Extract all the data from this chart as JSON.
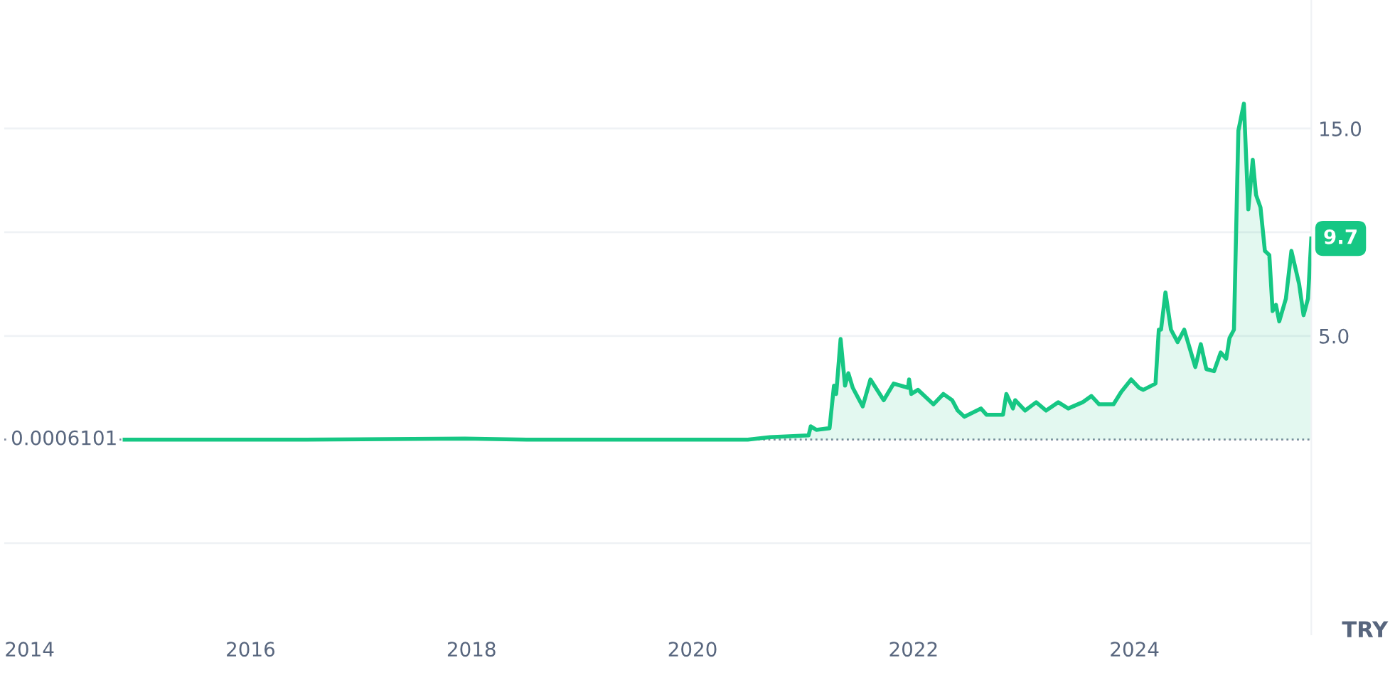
{
  "chart_data": {
    "type": "area",
    "x": [
      2014.86,
      2016.5,
      2017.94,
      2018.5,
      2020.5,
      2020.7,
      2021.05,
      2021.07,
      2021.12,
      2021.24,
      2021.28,
      2021.3,
      2021.34,
      2021.38,
      2021.41,
      2021.45,
      2021.54,
      2021.61,
      2021.73,
      2021.82,
      2021.95,
      2021.96,
      2021.98,
      2022.04,
      2022.18,
      2022.27,
      2022.35,
      2022.4,
      2022.46,
      2022.61,
      2022.66,
      2022.81,
      2022.84,
      2022.9,
      2022.92,
      2023.01,
      2023.11,
      2023.2,
      2023.31,
      2023.4,
      2023.53,
      2023.61,
      2023.68,
      2023.81,
      2023.88,
      2023.97,
      2024.04,
      2024.08,
      2024.19,
      2024.22,
      2024.24,
      2024.28,
      2024.33,
      2024.39,
      2024.45,
      2024.55,
      2024.6,
      2024.65,
      2024.72,
      2024.78,
      2024.83,
      2024.86,
      2024.9,
      2024.94,
      2024.99,
      2025.03,
      2025.07,
      2025.1,
      2025.14,
      2025.18,
      2025.22,
      2025.25,
      2025.28,
      2025.31,
      2025.37,
      2025.42,
      2025.49,
      2025.53,
      2025.57,
      2025.6
    ],
    "series": [
      {
        "color": "#16c784",
        "values": [
          0,
          0,
          0.05,
          0,
          0,
          0.12,
          0.2,
          0.64,
          0.47,
          0.55,
          2.6,
          2.2,
          4.85,
          2.6,
          3.2,
          2.5,
          1.6,
          2.9,
          1.9,
          2.7,
          2.5,
          2.9,
          2.2,
          2.4,
          1.7,
          2.2,
          1.9,
          1.4,
          1.1,
          1.5,
          1.2,
          1.2,
          2.2,
          1.5,
          1.9,
          1.4,
          1.8,
          1.4,
          1.8,
          1.5,
          1.8,
          2.1,
          1.7,
          1.7,
          2.3,
          2.9,
          2.5,
          2.4,
          2.7,
          5.3,
          5.3,
          7.1,
          5.3,
          4.7,
          5.3,
          3.5,
          4.6,
          3.4,
          3.3,
          4.2,
          3.9,
          4.9,
          5.3,
          14.9,
          16.2,
          11.1,
          13.5,
          11.8,
          11.2,
          9.1,
          8.9,
          6.2,
          6.5,
          5.7,
          6.8,
          9.1,
          7.5,
          6.0,
          6.8,
          9.7
        ]
      }
    ],
    "xlim": [
      2013.77,
      2025.6
    ],
    "xticks": [
      2014,
      2016,
      2018,
      2020,
      2022,
      2024
    ],
    "ylim": [
      -9.4,
      21.2
    ],
    "yticks": [
      {
        "value": -5,
        "label": null
      },
      {
        "value": 5,
        "label": "5.0"
      },
      {
        "value": 10,
        "label": null
      },
      {
        "value": 15,
        "label": "15.0"
      }
    ],
    "grid": "y",
    "ref_lines": [
      {
        "axis": "y",
        "value": 0.0006101,
        "label": "0.0006101",
        "color": "#808a9d",
        "line_style": "dotted"
      }
    ],
    "annotations": [
      {
        "text": "9.7",
        "x": 2025.6,
        "y": 9.7
      },
      "TRY"
    ]
  }
}
